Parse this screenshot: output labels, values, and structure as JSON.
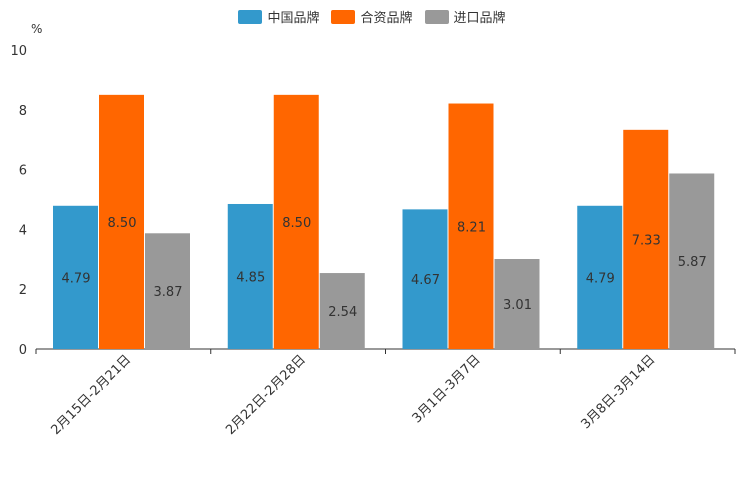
{
  "chart_data": {
    "type": "bar",
    "unit": "%",
    "categories": [
      "2月15日-2月21日",
      "2月22日-2月28日",
      "3月1日-3月7日",
      "3月8日-3月14日"
    ],
    "series": [
      {
        "name": "中国品牌",
        "color": "#3399cc",
        "values": [
          4.79,
          4.85,
          4.67,
          4.79
        ]
      },
      {
        "name": "合资品牌",
        "color": "#ff6600",
        "values": [
          8.5,
          8.5,
          8.21,
          7.33
        ]
      },
      {
        "name": "进口品牌",
        "color": "#999999",
        "values": [
          3.87,
          2.54,
          3.01,
          5.87
        ]
      }
    ],
    "value_labels": [
      [
        "4.79",
        "4.85",
        "4.67",
        "4.79"
      ],
      [
        "8.50",
        "8.50",
        "8.21",
        "7.33"
      ],
      [
        "3.87",
        "2.54",
        "3.01",
        "5.87"
      ]
    ],
    "ylim": [
      0,
      10
    ],
    "yticks": [
      "0",
      "2",
      "4",
      "6",
      "8",
      "10"
    ],
    "legend_position": "top-center",
    "grid": false
  }
}
